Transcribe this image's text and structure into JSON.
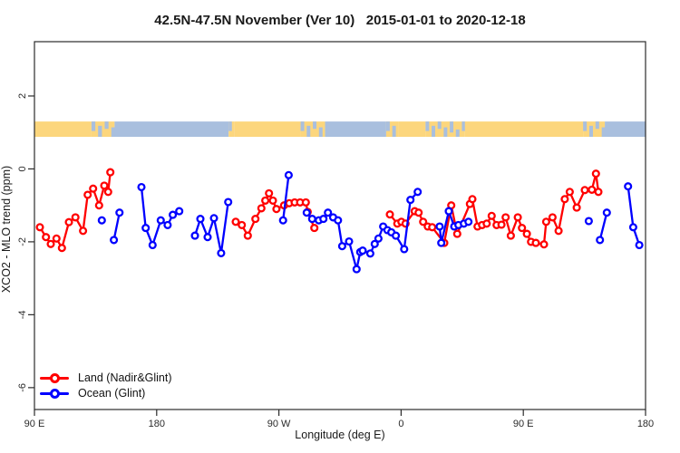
{
  "chart": {
    "title": "42.5N-47.5N November (Ver 10)   2015-01-01 to 2020-12-18",
    "xlabel": "Longitude (deg E)",
    "ylabel": "XCO2 - MLO trend (ppm)"
  },
  "legend": {
    "items": [
      {
        "label": "Land (Nadir&Glint)",
        "color": "#ff0000"
      },
      {
        "label": "Ocean (Glint)",
        "color": "#0000ff"
      }
    ]
  },
  "colors": {
    "land_series": "#ff0000",
    "ocean_series": "#0000ff",
    "strip_land": "#fcd67d",
    "strip_ocean": "#a9bfde",
    "axis": "#2b2b2b"
  },
  "chart_data": {
    "type": "scatter",
    "title": "42.5N-47.5N November (Ver 10)   2015-01-01 to 2020-12-18",
    "xlabel": "Longitude (deg E)",
    "ylabel": "XCO2 - MLO trend (ppm)",
    "xlim": [
      90,
      540
    ],
    "ylim": [
      -6.6,
      3.49
    ],
    "grid": false,
    "legend_position": "bottom-left",
    "x_ticks": [
      {
        "value": 90,
        "label": "90 E"
      },
      {
        "value": 180,
        "label": "180"
      },
      {
        "value": 270,
        "label": "90 W"
      },
      {
        "value": 360,
        "label": "0"
      },
      {
        "value": 450,
        "label": "90 E"
      },
      {
        "value": 540,
        "label": "180"
      }
    ],
    "y_ticks": [
      {
        "value": 2,
        "label": "2"
      },
      {
        "value": 0,
        "label": "0"
      },
      {
        "value": -2,
        "label": "-2"
      },
      {
        "value": -4,
        "label": "-4"
      },
      {
        "value": -6,
        "label": "-6"
      }
    ],
    "map_strip": {
      "note": "coastline strip showing land/ocean along 42.5N-47.5N",
      "value_top": 1.3,
      "value_bottom": 0.88,
      "segments": [
        {
          "from": 90,
          "to": 132,
          "type": "land"
        },
        {
          "from": 132,
          "to": 149,
          "type": "mixed"
        },
        {
          "from": 149,
          "to": 233,
          "type": "ocean"
        },
        {
          "from": 233,
          "to": 237,
          "type": "mixed"
        },
        {
          "from": 237,
          "to": 286,
          "type": "land"
        },
        {
          "from": 286,
          "to": 304,
          "type": "mixed"
        },
        {
          "from": 304,
          "to": 349,
          "type": "ocean"
        },
        {
          "from": 349,
          "to": 358,
          "type": "mixed"
        },
        {
          "from": 358,
          "to": 378,
          "type": "land"
        },
        {
          "from": 378,
          "to": 407,
          "type": "mixed"
        },
        {
          "from": 407,
          "to": 494,
          "type": "land"
        },
        {
          "from": 494,
          "to": 510,
          "type": "mixed"
        },
        {
          "from": 510,
          "to": 540,
          "type": "ocean"
        }
      ]
    },
    "series": [
      {
        "name": "Land (Nadir&Glint)",
        "color": "#ff0000",
        "marker": "open-circle",
        "chains": [
          [
            [
              94,
              -1.6
            ],
            [
              98.5,
              -1.87
            ],
            [
              102,
              -2.06
            ],
            [
              106.2,
              -1.91
            ],
            [
              110.2,
              -2.17
            ],
            [
              115.4,
              -1.46
            ],
            [
              120.2,
              -1.33
            ],
            [
              125.8,
              -1.7
            ],
            [
              129.2,
              -0.71
            ],
            [
              133.2,
              -0.54
            ],
            [
              137.6,
              -1.0
            ],
            [
              141.4,
              -0.46
            ],
            [
              144.3,
              -0.63
            ],
            [
              145.9,
              -0.09
            ]
          ],
          [
            [
              238.2,
              -1.45
            ],
            [
              242.7,
              -1.54
            ],
            [
              247.1,
              -1.83
            ],
            [
              252.7,
              -1.37
            ],
            [
              257.1,
              -1.08
            ],
            [
              260,
              -0.87
            ],
            [
              262.7,
              -0.67
            ],
            [
              265.6,
              -0.87
            ],
            [
              268.2,
              -1.1
            ],
            [
              273.8,
              -1.0
            ],
            [
              277.6,
              -0.94
            ],
            [
              281.6,
              -0.92
            ],
            [
              285.6,
              -0.92
            ],
            [
              289.8,
              -0.92
            ],
            [
              291.2,
              -1.18
            ],
            [
              296.1,
              -1.62
            ]
          ],
          [
            [
              351.7,
              -1.25
            ],
            [
              357.2,
              -1.5
            ],
            [
              360.2,
              -1.45
            ],
            [
              363.3,
              -1.5
            ],
            [
              370,
              -1.16
            ],
            [
              372.9,
              -1.2
            ],
            [
              376.2,
              -1.45
            ],
            [
              379.6,
              -1.58
            ],
            [
              382.9,
              -1.6
            ],
            [
              391.8,
              -2.03
            ],
            [
              396.9,
              -1.0
            ],
            [
              401.3,
              -1.78
            ],
            [
              410.7,
              -0.96
            ],
            [
              412.5,
              -0.83
            ],
            [
              416.3,
              -1.58
            ],
            [
              419.6,
              -1.54
            ],
            [
              423,
              -1.5
            ],
            [
              426.7,
              -1.29
            ],
            [
              430.3,
              -1.54
            ],
            [
              433.9,
              -1.53
            ],
            [
              437,
              -1.33
            ],
            [
              440.8,
              -1.83
            ],
            [
              445.9,
              -1.33
            ],
            [
              449,
              -1.62
            ],
            [
              452.6,
              -1.78
            ],
            [
              455.7,
              -2.0
            ],
            [
              459.2,
              -2.03
            ],
            [
              465.2,
              -2.07
            ],
            [
              466.8,
              -1.45
            ],
            [
              471.5,
              -1.33
            ],
            [
              476,
              -1.7
            ],
            [
              480.5,
              -0.83
            ],
            [
              484.2,
              -0.63
            ],
            [
              489.3,
              -1.06
            ],
            [
              495.3,
              -0.58
            ],
            [
              500.5,
              -0.57
            ],
            [
              503.5,
              -0.13
            ],
            [
              505.3,
              -0.63
            ]
          ]
        ]
      },
      {
        "name": "Ocean (Glint)",
        "color": "#0000ff",
        "marker": "open-circle",
        "chains": [
          [
            [
              139.6,
              -1.41
            ]
          ],
          [
            [
              148.5,
              -1.95
            ],
            [
              152.6,
              -1.2
            ]
          ],
          [
            [
              168.8,
              -0.5
            ],
            [
              171.9,
              -1.62
            ],
            [
              177,
              -2.09
            ],
            [
              183,
              -1.41
            ],
            [
              188.1,
              -1.54
            ],
            [
              191.9,
              -1.26
            ],
            [
              196.6,
              -1.16
            ]
          ],
          [
            [
              208.2,
              -1.83
            ],
            [
              212.2,
              -1.37
            ],
            [
              217.5,
              -1.87
            ],
            [
              222.2,
              -1.35
            ],
            [
              227.5,
              -2.31
            ],
            [
              232.7,
              -0.91
            ]
          ],
          [
            [
              273.1,
              -1.41
            ],
            [
              277.2,
              -0.17
            ]
          ],
          [
            [
              290.5,
              -1.2
            ],
            [
              294.5,
              -1.37
            ],
            [
              299.4,
              -1.41
            ],
            [
              302.8,
              -1.37
            ],
            [
              306.1,
              -1.2
            ],
            [
              309.9,
              -1.33
            ],
            [
              313.5,
              -1.41
            ],
            [
              316.6,
              -2.12
            ],
            [
              321.7,
              -1.99
            ],
            [
              327.2,
              -2.75
            ],
            [
              329.9,
              -2.28
            ],
            [
              331.7,
              -2.24
            ],
            [
              337.3,
              -2.32
            ],
            [
              340.6,
              -2.06
            ],
            [
              343.3,
              -1.91
            ],
            [
              346.8,
              -1.58
            ],
            [
              349.9,
              -1.68
            ],
            [
              352.8,
              -1.74
            ],
            [
              356.1,
              -1.83
            ],
            [
              362.3,
              -2.2
            ],
            [
              366.9,
              -0.85
            ],
            [
              372.2,
              -0.63
            ]
          ],
          [
            [
              388.4,
              -1.58
            ],
            [
              389.6,
              -2.03
            ],
            [
              395.1,
              -1.16
            ],
            [
              399.1,
              -1.58
            ],
            [
              402.2,
              -1.54
            ],
            [
              406.2,
              -1.5
            ],
            [
              409.6,
              -1.45
            ]
          ],
          [
            [
              498.2,
              -1.43
            ]
          ],
          [
            [
              506.4,
              -1.95
            ],
            [
              511.5,
              -1.2
            ]
          ],
          [
            [
              527.1,
              -0.48
            ],
            [
              530.9,
              -1.6
            ],
            [
              535.4,
              -2.09
            ]
          ]
        ]
      }
    ]
  }
}
